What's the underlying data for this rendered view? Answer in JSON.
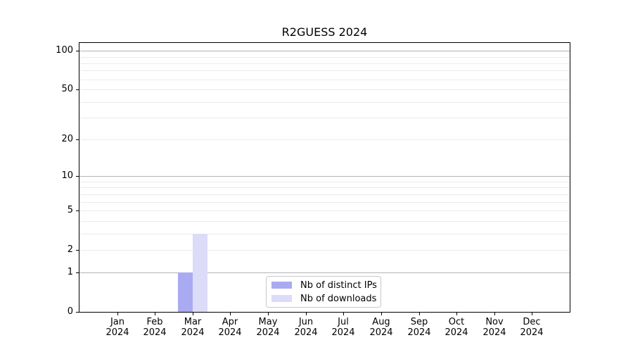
{
  "title": "R2GUESS 2024",
  "colors": {
    "distinct_ips": "#aaaaf2",
    "downloads": "#dcdcf8",
    "grid_major": "#b4b4b4",
    "grid_minor": "#eaeaea",
    "axis": "#000000",
    "legend_border": "#c8c8c8",
    "background": "#ffffff"
  },
  "legend": {
    "items": [
      {
        "label": "Nb of distinct IPs",
        "color_key": "distinct_ips"
      },
      {
        "label": "Nb of downloads",
        "color_key": "downloads"
      }
    ]
  },
  "chart_data": {
    "type": "bar",
    "title": "R2GUESS 2024",
    "categories": [
      "Jan",
      "Feb",
      "Mar",
      "Apr",
      "May",
      "Jun",
      "Jul",
      "Aug",
      "Sep",
      "Oct",
      "Nov",
      "Dec"
    ],
    "category_sublabel": "2024",
    "series": [
      {
        "name": "Nb of distinct IPs",
        "color_key": "distinct_ips",
        "values": [
          0,
          0,
          1,
          0,
          0,
          0,
          0,
          0,
          0,
          0,
          0,
          0
        ]
      },
      {
        "name": "Nb of downloads",
        "color_key": "downloads",
        "values": [
          0,
          0,
          3,
          0,
          0,
          0,
          0,
          0,
          0,
          0,
          0,
          0
        ]
      }
    ],
    "xlabel": "",
    "ylabel": "",
    "y_axis": {
      "scale": "log1p",
      "ticks": [
        0,
        1,
        2,
        5,
        10,
        20,
        50,
        100
      ],
      "max": 115,
      "major_gridlines": [
        1,
        10,
        100
      ],
      "minor_gridlines": [
        2,
        3,
        4,
        5,
        6,
        7,
        8,
        9,
        20,
        30,
        40,
        50,
        60,
        70,
        80,
        90
      ]
    },
    "grid": true,
    "legend_position": "lower center"
  }
}
